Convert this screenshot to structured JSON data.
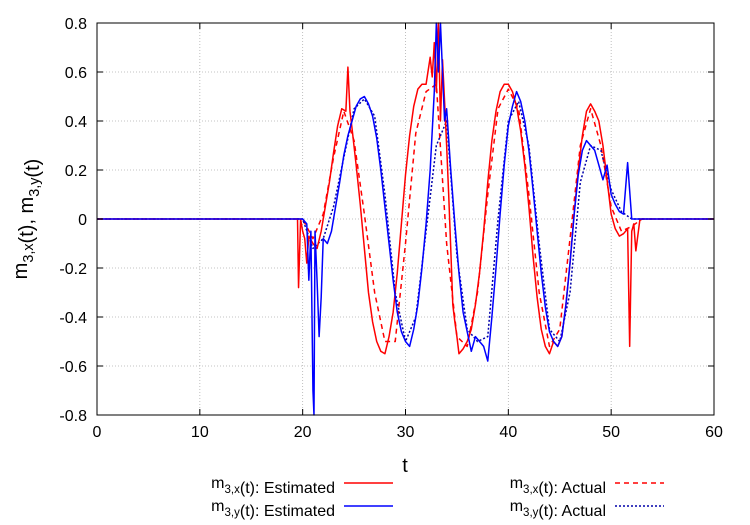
{
  "chart_data": {
    "type": "line",
    "xlabel": "t",
    "ylabel": "m3,x(t), m3,y(t)",
    "xlim": [
      0,
      60
    ],
    "ylim": [
      -0.8,
      0.8
    ],
    "xticks": [
      "0",
      "10",
      "20",
      "30",
      "40",
      "50",
      "60"
    ],
    "yticks": [
      "-0.8",
      "-0.6",
      "-0.4",
      "-0.2",
      "0",
      "0.2",
      "0.4",
      "0.6",
      "0.8"
    ],
    "grid": true,
    "legend_position": "below",
    "series": [
      {
        "name": "m3,x(t): Estimated",
        "color": "#ff0000",
        "dash": "solid",
        "x": [
          0,
          19.5,
          19.6,
          19.8,
          20.0,
          20.2,
          20.4,
          20.6,
          21.0,
          21.4,
          21.8,
          22.2,
          22.6,
          23.0,
          23.4,
          23.8,
          24.2,
          24.4,
          24.6,
          24.8,
          25.2,
          25.6,
          26.0,
          26.4,
          26.8,
          27.2,
          27.6,
          28.0,
          28.4,
          28.8,
          29.2,
          29.6,
          30.0,
          30.4,
          30.8,
          31.2,
          31.6,
          32.0,
          32.4,
          32.6,
          32.8,
          33.0,
          33.2,
          33.4,
          33.6,
          33.8,
          34.0,
          34.2,
          34.4,
          34.6,
          34.8,
          35.0,
          35.2,
          35.6,
          36.0,
          36.4,
          36.8,
          37.2,
          37.6,
          38.0,
          38.4,
          38.8,
          39.2,
          39.6,
          40.0,
          40.4,
          40.8,
          41.2,
          41.6,
          42.0,
          42.4,
          42.8,
          43.2,
          43.6,
          44.0,
          44.4,
          44.8,
          45.2,
          45.6,
          46.0,
          46.4,
          46.8,
          47.2,
          47.6,
          48.0,
          48.4,
          48.8,
          49.2,
          49.6,
          50.0,
          50.4,
          50.8,
          51.2,
          51.6,
          51.8,
          52.0,
          52.2,
          52.4,
          52.8,
          53.0,
          60
        ],
        "y": [
          0,
          0,
          -0.28,
          0.0,
          -0.05,
          -0.08,
          -0.18,
          -0.07,
          -0.1,
          -0.12,
          -0.05,
          0.05,
          0.15,
          0.27,
          0.38,
          0.45,
          0.44,
          0.62,
          0.44,
          0.37,
          0.22,
          0.06,
          -0.12,
          -0.3,
          -0.42,
          -0.5,
          -0.54,
          -0.55,
          -0.48,
          -0.38,
          -0.22,
          -0.02,
          0.18,
          0.34,
          0.46,
          0.53,
          0.55,
          0.55,
          0.66,
          0.58,
          0.72,
          0.52,
          0.8,
          0.4,
          0.65,
          0.48,
          0.3,
          0.1,
          -0.12,
          -0.35,
          -0.42,
          -0.48,
          -0.55,
          -0.53,
          -0.5,
          -0.45,
          -0.35,
          -0.22,
          -0.05,
          0.15,
          0.32,
          0.44,
          0.52,
          0.55,
          0.55,
          0.52,
          0.46,
          0.36,
          0.22,
          0.05,
          -0.15,
          -0.32,
          -0.45,
          -0.52,
          -0.55,
          -0.5,
          -0.52,
          -0.48,
          -0.35,
          -0.18,
          0.02,
          0.2,
          0.34,
          0.44,
          0.47,
          0.44,
          0.4,
          0.3,
          0.16,
          0.02,
          -0.04,
          -0.07,
          -0.06,
          -0.04,
          -0.52,
          -0.05,
          -0.02,
          -0.13,
          0,
          0,
          0
        ]
      },
      {
        "name": "m3,y(t): Estimated",
        "color": "#0000ff",
        "dash": "solid",
        "x": [
          0,
          19.6,
          20.0,
          20.4,
          20.6,
          20.8,
          21.0,
          21.1,
          21.2,
          21.4,
          21.6,
          21.8,
          22.0,
          22.4,
          22.8,
          23.2,
          23.6,
          24.0,
          24.4,
          24.8,
          25.2,
          25.6,
          26.0,
          26.4,
          26.8,
          27.2,
          27.6,
          28.0,
          28.4,
          28.8,
          29.2,
          29.6,
          30.0,
          30.4,
          30.8,
          31.2,
          31.6,
          32.0,
          32.4,
          32.8,
          33.0,
          33.2,
          33.4,
          33.6,
          33.8,
          34.0,
          34.4,
          34.8,
          35.2,
          35.6,
          36.0,
          36.4,
          36.8,
          37.2,
          37.6,
          38.0,
          38.4,
          38.8,
          39.2,
          39.6,
          40.0,
          40.4,
          40.8,
          41.2,
          41.6,
          42.0,
          42.4,
          42.8,
          43.2,
          43.6,
          44.0,
          44.4,
          44.8,
          45.2,
          45.6,
          46.0,
          46.4,
          46.8,
          47.2,
          47.6,
          48.0,
          48.4,
          48.8,
          49.2,
          49.6,
          50.0,
          50.4,
          50.8,
          51.2,
          51.6,
          52.0,
          52.4,
          52.8,
          60
        ],
        "y": [
          0,
          0,
          0.0,
          -0.02,
          -0.25,
          -0.05,
          -0.7,
          -0.8,
          -0.05,
          -0.25,
          -0.48,
          -0.32,
          -0.08,
          -0.1,
          -0.05,
          0.05,
          0.15,
          0.26,
          0.34,
          0.4,
          0.46,
          0.49,
          0.5,
          0.47,
          0.42,
          0.33,
          0.2,
          0.05,
          -0.1,
          -0.25,
          -0.38,
          -0.46,
          -0.5,
          -0.52,
          -0.45,
          -0.35,
          -0.2,
          -0.02,
          0.2,
          0.52,
          0.8,
          0.6,
          0.8,
          0.6,
          0.4,
          0.45,
          0.2,
          -0.02,
          -0.22,
          -0.38,
          -0.46,
          -0.54,
          -0.48,
          -0.5,
          -0.52,
          -0.58,
          -0.4,
          -0.2,
          0.02,
          0.22,
          0.38,
          0.46,
          0.52,
          0.48,
          0.4,
          0.28,
          0.12,
          -0.05,
          -0.22,
          -0.36,
          -0.46,
          -0.5,
          -0.52,
          -0.48,
          -0.35,
          -0.18,
          0.02,
          0.18,
          0.28,
          0.32,
          0.3,
          0.28,
          0.22,
          0.16,
          0.22,
          0.1,
          0.06,
          0.03,
          0.02,
          0.23,
          0.0,
          0.0,
          0,
          0
        ]
      },
      {
        "name": "m3,x(t): Actual",
        "color": "#ff0000",
        "dash": "dashed",
        "x": [
          0,
          20.0,
          21.0,
          22.0,
          23.0,
          24.0,
          25.0,
          26.0,
          27.0,
          28.0,
          29.0,
          30.0,
          31.0,
          32.0,
          33.0,
          34.0,
          35.0,
          36.0,
          37.0,
          38.0,
          39.0,
          40.0,
          41.0,
          42.0,
          43.0,
          44.0,
          45.0,
          46.0,
          47.0,
          48.0,
          49.0,
          50.0,
          51.0,
          52.0,
          53.0,
          60
        ],
        "y": [
          0,
          0.0,
          -0.08,
          0.02,
          0.25,
          0.44,
          0.32,
          0.02,
          -0.3,
          -0.5,
          -0.5,
          -0.1,
          0.35,
          0.52,
          0.55,
          -0.1,
          -0.48,
          -0.52,
          -0.3,
          0.1,
          0.45,
          0.53,
          0.45,
          0.1,
          -0.3,
          -0.52,
          -0.45,
          -0.08,
          0.3,
          0.45,
          0.3,
          0.05,
          -0.05,
          -0.03,
          0,
          0
        ]
      },
      {
        "name": "m3,y(t): Actual",
        "color": "#0000aa",
        "dash": "dotted",
        "x": [
          0,
          20.0,
          21.0,
          22.0,
          23.0,
          24.0,
          25.0,
          26.0,
          27.0,
          28.0,
          29.0,
          30.0,
          31.0,
          32.0,
          33.0,
          34.0,
          35.0,
          36.0,
          37.0,
          38.0,
          39.0,
          40.0,
          41.0,
          42.0,
          43.0,
          44.0,
          45.0,
          46.0,
          47.0,
          48.0,
          49.0,
          50.0,
          51.0,
          52.0,
          53.0,
          60
        ],
        "y": [
          0,
          0.0,
          -0.12,
          -0.08,
          0.05,
          0.25,
          0.45,
          0.49,
          0.42,
          0.1,
          -0.3,
          -0.5,
          -0.4,
          -0.05,
          0.3,
          0.4,
          -0.15,
          -0.45,
          -0.5,
          -0.48,
          0.0,
          0.4,
          0.48,
          0.3,
          -0.1,
          -0.45,
          -0.5,
          -0.3,
          0.15,
          0.3,
          0.28,
          0.12,
          0.03,
          0.0,
          0,
          0
        ]
      }
    ]
  }
}
